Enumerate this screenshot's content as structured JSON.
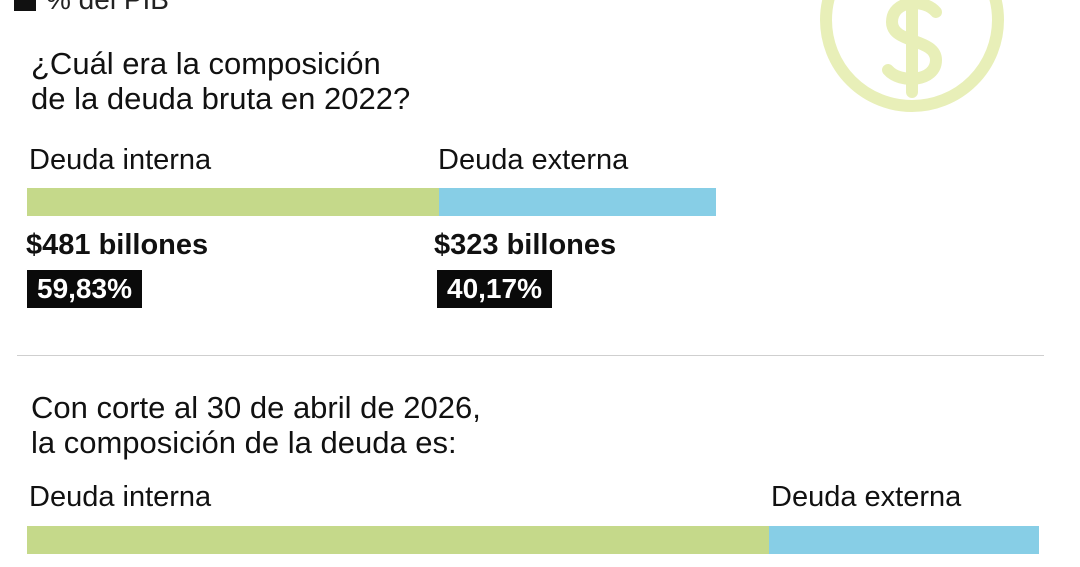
{
  "legend_top": {
    "label": "% del PIB",
    "swatch_color": "#111111"
  },
  "icon": {
    "name": "dollar-coin-icon",
    "color": "#e8efb8"
  },
  "colors": {
    "interna": "#c5d98a",
    "externa": "#87cee6"
  },
  "section_2022": {
    "title_line1": "¿Cuál era la composición",
    "title_line2": "de la deuda bruta en 2022?",
    "interna_label": "Deuda interna",
    "externa_label": "Deuda externa",
    "interna_amount": "$481 billones",
    "externa_amount": "$323 billones",
    "interna_pct": "59,83%",
    "externa_pct": "40,17%"
  },
  "section_2026": {
    "title_line1": "Con corte al 30 de abril de 2026,",
    "title_line2": "la composición de la deuda es:",
    "interna_label": "Deuda interna",
    "externa_label": "Deuda externa"
  },
  "chart_data": [
    {
      "type": "bar",
      "title": "¿Cuál era la composición de la deuda bruta en 2022?",
      "categories": [
        "Deuda interna",
        "Deuda externa"
      ],
      "values": [
        481,
        323
      ],
      "percentages": [
        59.83,
        40.17
      ],
      "unit": "billones"
    },
    {
      "type": "bar",
      "title": "Con corte al 30 de abril de 2026, la composición de la deuda es:",
      "categories": [
        "Deuda interna",
        "Deuda externa"
      ],
      "shares": [
        73.3,
        26.7
      ]
    }
  ]
}
